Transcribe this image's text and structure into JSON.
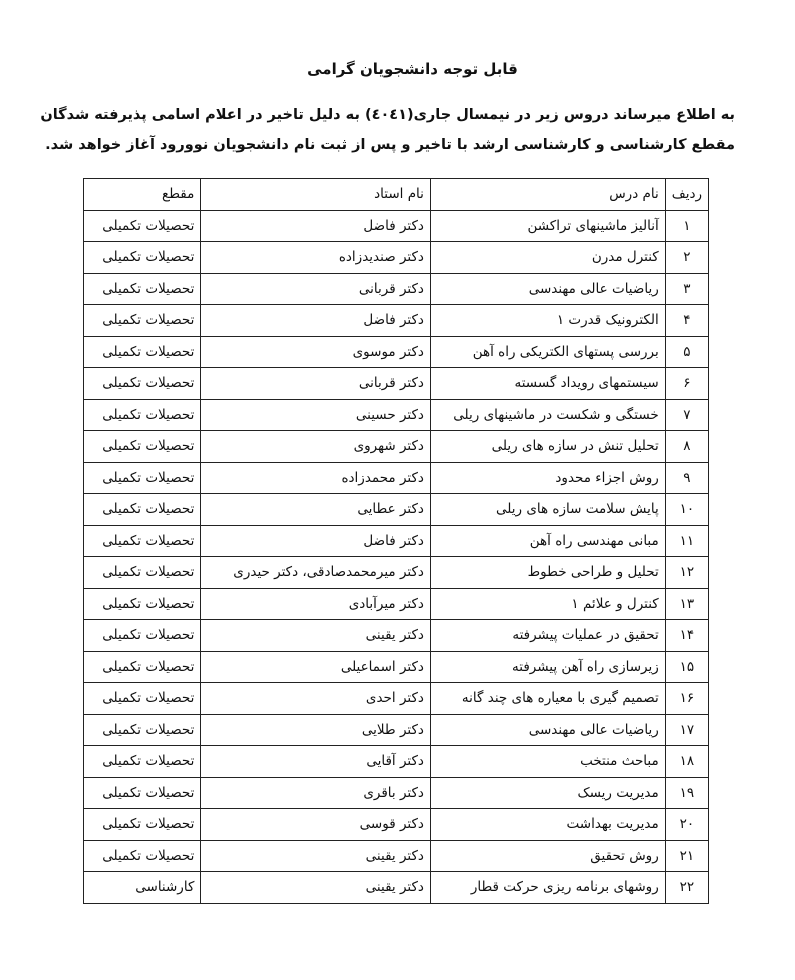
{
  "title": "قابل توجه دانشجویان گرامی",
  "intro": "به اطلاع میرساند دروس زیر در نیمسال جاری(٤٠٤١) به دلیل تاخیر در اعلام اسامی پذیرفته شدگان مقطع کارشناسی و کارشناسی ارشد با تاخیر و پس از ثبت نام دانشجویان نوورود آغاز خواهد شد.",
  "table": {
    "headers": [
      "ردیف",
      "نام درس",
      "نام استاد",
      "مقطع"
    ],
    "rows": [
      [
        "۱",
        "آنالیز ماشینهای تراکشن",
        "دکتر فاضل",
        "تحصیلات تکمیلی"
      ],
      [
        "۲",
        "کنترل مدرن",
        "دکتر صندیدزاده",
        "تحصیلات تکمیلی"
      ],
      [
        "۳",
        "ریاضیات عالی مهندسی",
        "دکتر قربانی",
        "تحصیلات تکمیلی"
      ],
      [
        "۴",
        "الکترونیک قدرت ۱",
        "دکتر فاضل",
        "تحصیلات تکمیلی"
      ],
      [
        "۵",
        "بررسی پستهای الکتریکی راه آهن",
        "دکتر موسوی",
        "تحصیلات تکمیلی"
      ],
      [
        "۶",
        "سیستمهای رویداد گسسته",
        "دکتر قربانی",
        "تحصیلات تکمیلی"
      ],
      [
        "۷",
        "خستگی و شکست در ماشینهای ریلی",
        "دکتر حسینی",
        "تحصیلات تکمیلی"
      ],
      [
        "۸",
        "تحلیل تنش در سازه های ریلی",
        "دکتر شهروی",
        "تحصیلات تکمیلی"
      ],
      [
        "۹",
        "روش اجزاء محدود",
        "دکتر محمدزاده",
        "تحصیلات تکمیلی"
      ],
      [
        "۱۰",
        "پایش سلامت سازه های ریلی",
        "دکتر عطایی",
        "تحصیلات تکمیلی"
      ],
      [
        "۱۱",
        "مبانی مهندسی راه آهن",
        "دکتر فاضل",
        "تحصیلات تکمیلی"
      ],
      [
        "۱۲",
        "تحلیل و طراحی خطوط",
        "دکتر میرمحمدصادقی، دکتر حیدری",
        "تحصیلات تکمیلی"
      ],
      [
        "۱۳",
        "کنترل و علائم ۱",
        "دکتر میرآبادی",
        "تحصیلات تکمیلی"
      ],
      [
        "۱۴",
        "تحقیق در عملیات پیشرفته",
        "دکتر یقینی",
        "تحصیلات تکمیلی"
      ],
      [
        "۱۵",
        "زیرسازی راه آهن پیشرفته",
        "دکتر اسماعیلی",
        "تحصیلات تکمیلی"
      ],
      [
        "۱۶",
        "تصمیم گیری با معیاره های چند گانه",
        "دکتر احدی",
        "تحصیلات تکمیلی"
      ],
      [
        "۱۷",
        "ریاضیات عالی مهندسی",
        "دکتر طلایی",
        "تحصیلات تکمیلی"
      ],
      [
        "۱۸",
        "مباحث منتخب",
        "دکتر آقایی",
        "تحصیلات تکمیلی"
      ],
      [
        "۱۹",
        "مدیریت ریسک",
        "دکتر باقری",
        "تحصیلات تکمیلی"
      ],
      [
        "۲۰",
        "مدیریت بهداشت",
        "دکتر قوسی",
        "تحصیلات تکمیلی"
      ],
      [
        "۲۱",
        "روش تحقیق",
        "دکتر یقینی",
        "تحصیلات تکمیلی"
      ],
      [
        "۲۲",
        "روشهای برنامه ریزی حرکت قطار",
        "دکتر یقینی",
        "کارشناسی"
      ]
    ]
  }
}
